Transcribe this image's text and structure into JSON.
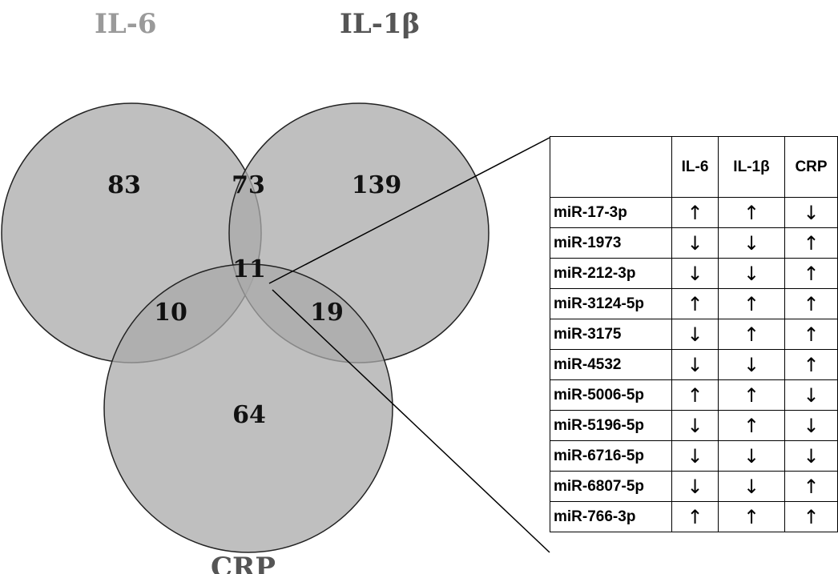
{
  "venn": {
    "sets": [
      {
        "name": "IL-6"
      },
      {
        "name": "IL-1β"
      },
      {
        "name": "CRP"
      }
    ],
    "regions": {
      "il6_only": "83",
      "il6_il1b": "73",
      "il1b_only": "139",
      "all_three": "11",
      "il6_crp": "10",
      "il1b_crp": "19",
      "crp_only": "64"
    }
  },
  "table": {
    "headers": [
      "",
      "IL-6",
      "IL-1β",
      "CRP"
    ],
    "rows": [
      {
        "name": "miR-17-3p",
        "il6": "↑",
        "il1b": "↑",
        "crp": "↓"
      },
      {
        "name": "miR-1973",
        "il6": "↓",
        "il1b": "↓",
        "crp": "↑"
      },
      {
        "name": "miR-212-3p",
        "il6": "↓",
        "il1b": "↓",
        "crp": "↑"
      },
      {
        "name": "miR-3124-5p",
        "il6": "↑",
        "il1b": "↑",
        "crp": "↑"
      },
      {
        "name": "miR-3175",
        "il6": "↓",
        "il1b": "↑",
        "crp": "↑"
      },
      {
        "name": "miR-4532",
        "il6": "↓",
        "il1b": "↓",
        "crp": "↑"
      },
      {
        "name": "miR-5006-5p",
        "il6": "↑",
        "il1b": "↑",
        "crp": "↓"
      },
      {
        "name": "miR-5196-5p",
        "il6": "↓",
        "il1b": "↑",
        "crp": "↓"
      },
      {
        "name": "miR-6716-5p",
        "il6": "↓",
        "il1b": "↓",
        "crp": "↓"
      },
      {
        "name": "miR-6807-5p",
        "il6": "↓",
        "il1b": "↓",
        "crp": "↑"
      },
      {
        "name": "miR-766-3p",
        "il6": "↑",
        "il1b": "↑",
        "crp": "↑"
      }
    ]
  },
  "colors": {
    "circle_fill": "#b8b8b8",
    "outline": "#222222"
  }
}
